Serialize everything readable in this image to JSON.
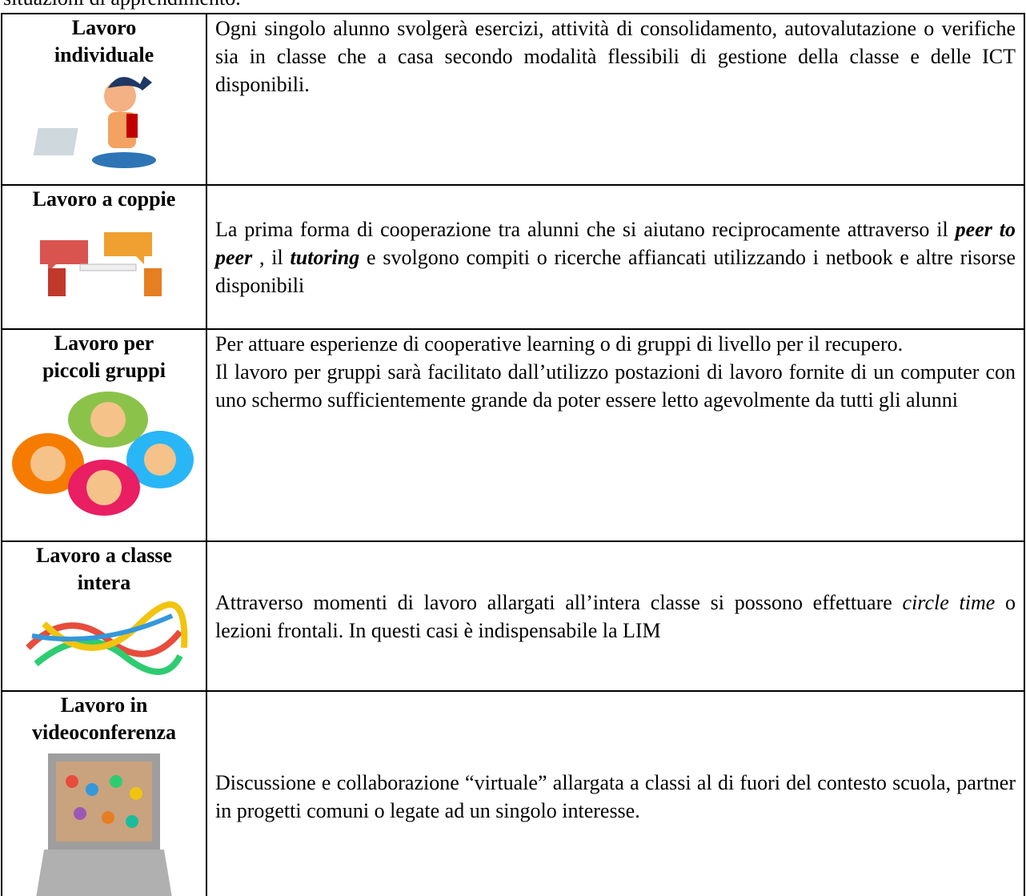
{
  "intro": "situazioni di apprendimento.",
  "table": {
    "rows": [
      {
        "title": [
          "Lavoro",
          "individuale"
        ],
        "align": "top",
        "paragraphs": [
          [
            {
              "text": "Ogni singolo alunno svolgerà esercizi, attività di consolidamento, autovalutazione o verifiche sia in classe che a casa secondo modalità flessibili di gestione della classe e delle ICT disponibili."
            }
          ]
        ]
      },
      {
        "title": [
          "Lavoro a coppie"
        ],
        "align": "middle",
        "paragraphs": [
          [
            {
              "text": "La prima forma di cooperazione tra alunni che si aiutano reciprocamente attraverso il "
            },
            {
              "text": "peer to peer",
              "style": "bold-italic"
            },
            {
              "text": " , il "
            },
            {
              "text": "tutoring",
              "style": "bold-italic"
            },
            {
              "text": " e svolgono compiti o ricerche affiancati utilizzando i netbook e altre risorse disponibili"
            }
          ]
        ]
      },
      {
        "title": [
          "Lavoro per",
          "piccoli gruppi"
        ],
        "align": "top",
        "paragraphs": [
          [
            {
              "text": "Per attuare esperienze di cooperative learning o di gruppi di livello per il recupero."
            }
          ],
          [
            {
              "text": "Il lavoro per gruppi sarà facilitato dall’utilizzo postazioni di lavoro fornite di un computer con uno schermo sufficientemente grande da poter essere letto agevolmente da tutti gli alunni"
            }
          ]
        ]
      },
      {
        "title": [
          "Lavoro a classe",
          "intera"
        ],
        "align": "middle",
        "paragraphs": [
          [
            {
              "text": "Attraverso momenti di lavoro allargati all’intera classe si possono effettuare "
            },
            {
              "text": "circle time",
              "style": "italic"
            },
            {
              "text": " o lezioni frontali. In questi casi è indispensabile la LIM"
            }
          ]
        ]
      },
      {
        "title": [
          "Lavoro in",
          "videoconferenza"
        ],
        "align": "middle",
        "paragraphs": [
          [
            {
              "text": "Discussione e collaborazione “virtuale” allargata a classi al di fuori del contesto scuola, partner in progetti comuni o legate ad un singolo interesse."
            }
          ]
        ]
      }
    ]
  }
}
